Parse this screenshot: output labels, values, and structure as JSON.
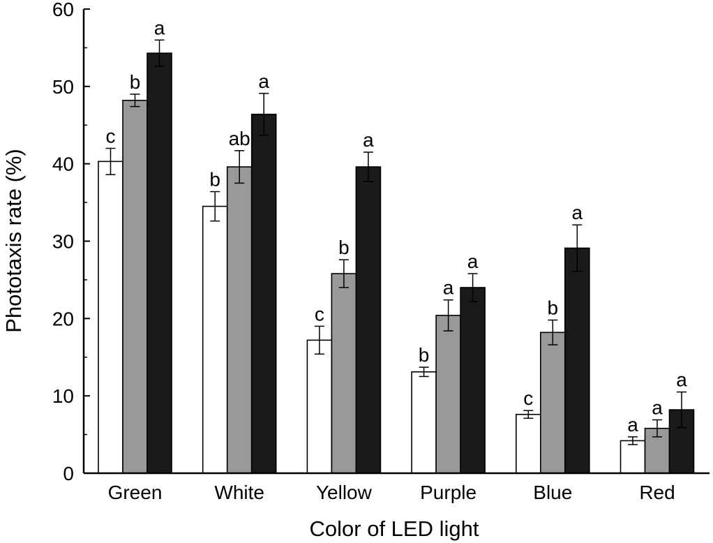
{
  "chart_data": {
    "type": "bar",
    "categories": [
      "Green",
      "White",
      "Yellow",
      "Purple",
      "Blue",
      "Red"
    ],
    "series": [
      {
        "color": "#ffffff",
        "values": [
          40.3,
          34.5,
          17.2,
          13.1,
          7.6,
          4.2
        ],
        "errors": [
          1.7,
          1.9,
          1.8,
          0.6,
          0.5,
          0.5
        ],
        "letters": [
          "c",
          "b",
          "c",
          "b",
          "c",
          "a"
        ]
      },
      {
        "color": "#999999",
        "values": [
          48.2,
          39.6,
          25.8,
          20.4,
          18.2,
          5.8
        ],
        "errors": [
          0.8,
          2.1,
          1.8,
          2.0,
          1.6,
          1.1
        ],
        "letters": [
          "b",
          "ab",
          "b",
          "a",
          "b",
          "a"
        ]
      },
      {
        "color": "#1a1a1a",
        "values": [
          54.3,
          46.4,
          39.6,
          24.0,
          29.1,
          8.2
        ],
        "errors": [
          1.7,
          2.7,
          1.9,
          1.8,
          3.0,
          2.3
        ],
        "letters": [
          "a",
          "a",
          "a",
          "a",
          "a",
          "a"
        ]
      }
    ],
    "xlabel": "Color of LED light",
    "ylabel": "Phototaxis rate (%)",
    "ylim": [
      0,
      60
    ],
    "yticks": [
      "0",
      "10",
      "20",
      "30",
      "40",
      "50",
      "60"
    ],
    "grid": false
  }
}
